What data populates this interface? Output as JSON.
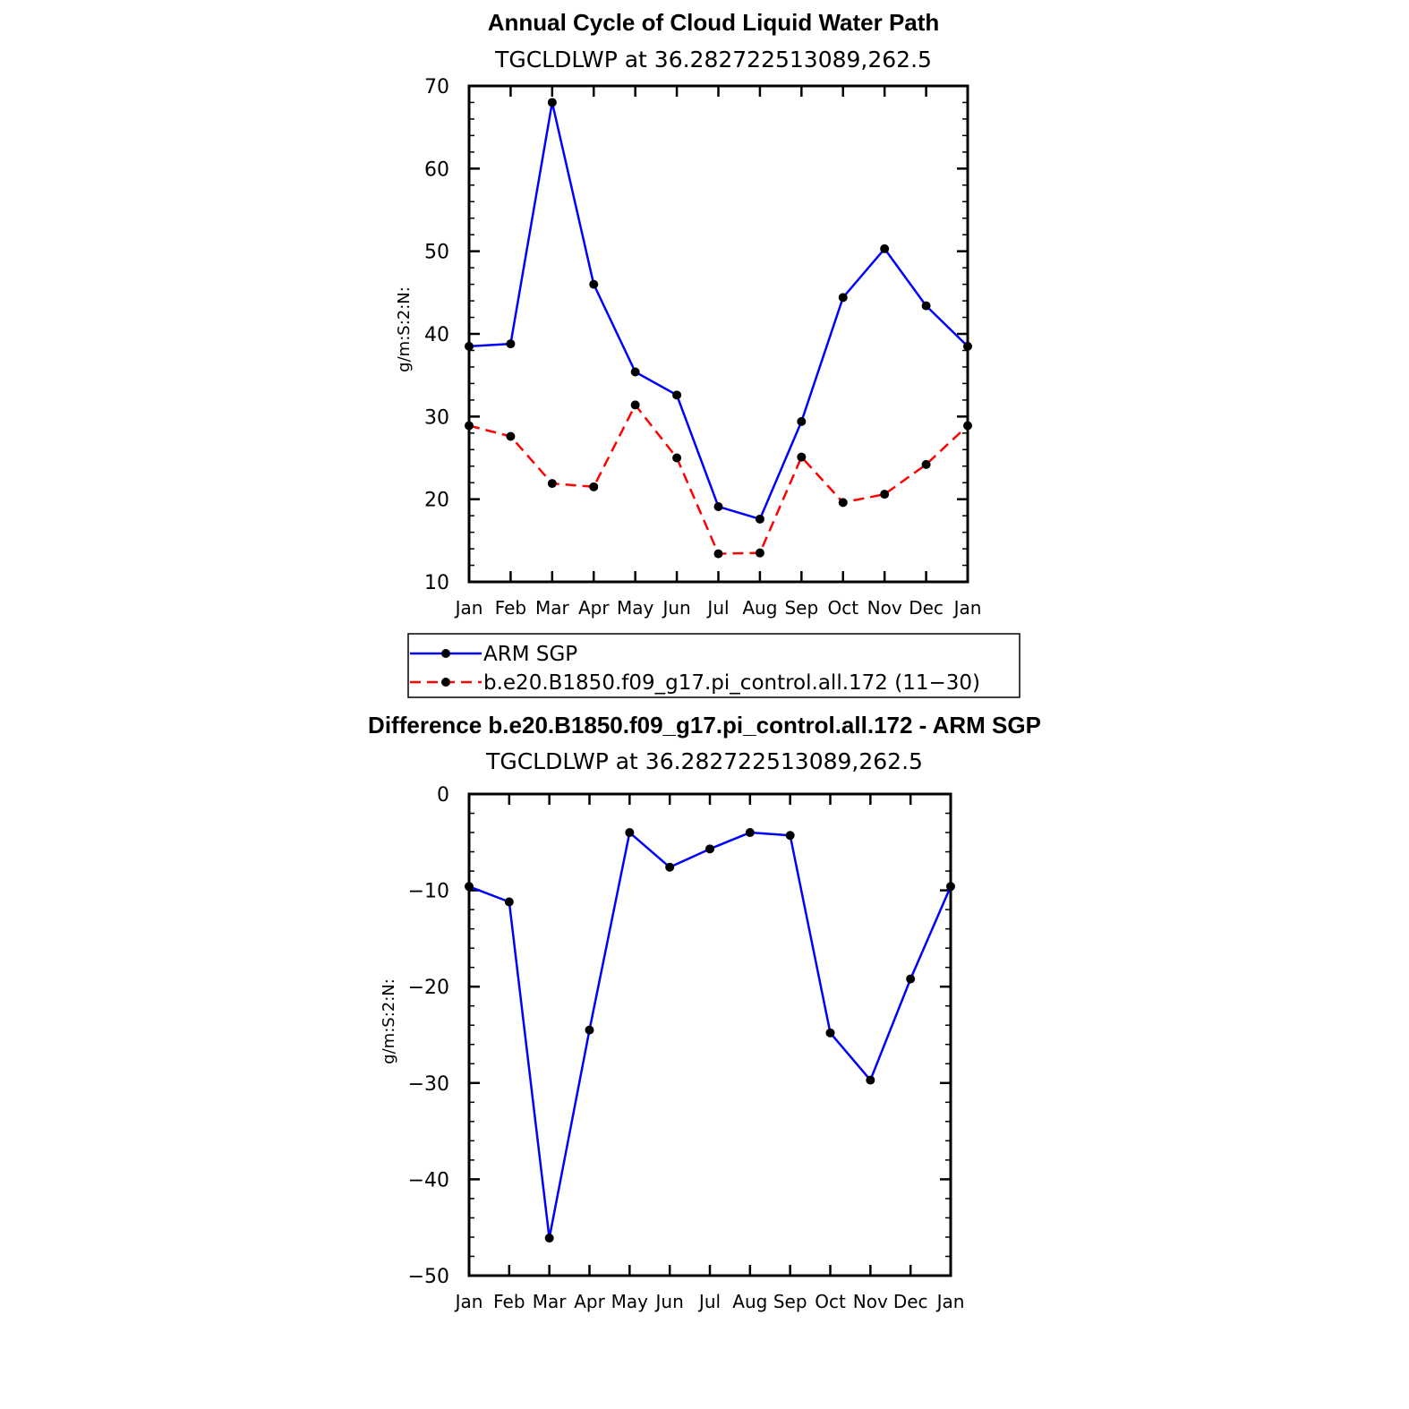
{
  "chart_data": [
    {
      "type": "line",
      "title": "Annual Cycle of Cloud Liquid Water Path",
      "subtitle": "TGCLDLWP  at  36.282722513089,262.5",
      "xlabel": "",
      "ylabel": "g/m:S:2:N:",
      "categories": [
        "Jan",
        "Feb",
        "Mar",
        "Apr",
        "May",
        "Jun",
        "Jul",
        "Aug",
        "Sep",
        "Oct",
        "Nov",
        "Dec",
        "Jan"
      ],
      "ylim": [
        10,
        70
      ],
      "yticks": [
        "10",
        "20",
        "30",
        "40",
        "50",
        "60",
        "70"
      ],
      "grid": false,
      "legend_position": "bottom",
      "series": [
        {
          "name": "ARM  SGP",
          "color": "#0000ff",
          "dash": "solid",
          "values": [
            38.5,
            38.8,
            68.0,
            46.0,
            35.4,
            32.6,
            19.1,
            17.6,
            29.4,
            44.4,
            50.3,
            43.4,
            38.5
          ]
        },
        {
          "name": "b.e20.B1850.f09_g17.pi_control.all.172  (11−30)",
          "color": "#ff0000",
          "dash": "dashed",
          "values": [
            28.9,
            27.6,
            21.9,
            21.5,
            31.4,
            25.0,
            13.4,
            13.5,
            25.1,
            19.6,
            20.6,
            24.2,
            28.9
          ]
        }
      ]
    },
    {
      "type": "line",
      "title": "Difference b.e20.B1850.f09_g17.pi_control.all.172 - ARM SGP",
      "subtitle": "TGCLDLWP  at  36.282722513089,262.5",
      "xlabel": "",
      "ylabel": "g/m:S:2:N:",
      "categories": [
        "Jan",
        "Feb",
        "Mar",
        "Apr",
        "May",
        "Jun",
        "Jul",
        "Aug",
        "Sep",
        "Oct",
        "Nov",
        "Dec",
        "Jan"
      ],
      "ylim": [
        -50,
        0
      ],
      "yticks": [
        "−50",
        "−40",
        "−30",
        "−20",
        "−10",
        "0"
      ],
      "grid": false,
      "series": [
        {
          "color": "#0000ff",
          "dash": "solid",
          "values": [
            -9.6,
            -11.2,
            -46.1,
            -24.5,
            -4.0,
            -7.6,
            -5.7,
            -4.0,
            -4.3,
            -24.8,
            -29.7,
            -19.2,
            -9.6
          ]
        }
      ]
    }
  ]
}
